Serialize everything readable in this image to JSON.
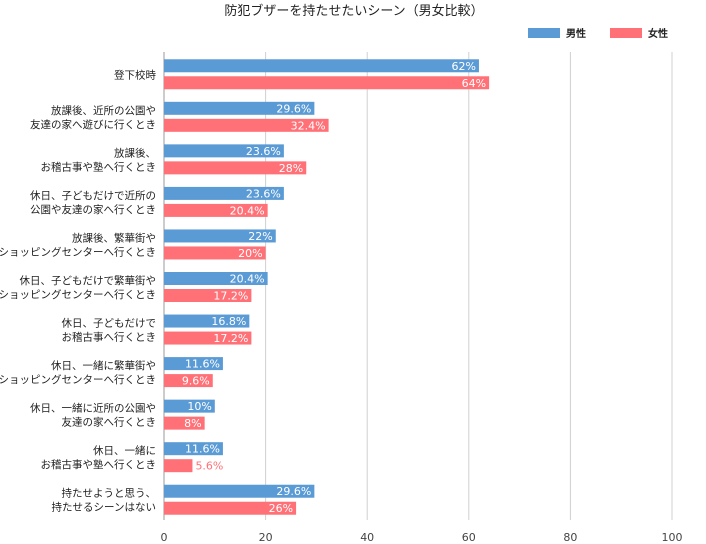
{
  "chart_data": {
    "type": "bar",
    "orientation": "horizontal",
    "title": "防犯ブザーを持たせたいシーン（男女比較）",
    "xlim": [
      0,
      100
    ],
    "xticks": [
      0,
      20,
      40,
      60,
      80,
      100
    ],
    "grid": true,
    "legend_position": "top-right",
    "categories": [
      [
        "登下校時"
      ],
      [
        "放課後、近所の公園や",
        "友達の家へ遊びに行くとき"
      ],
      [
        "放課後、",
        "お稽古事や塾へ行くとき"
      ],
      [
        "休日、子どもだけで近所の",
        "公園や友達の家へ行くとき"
      ],
      [
        "放課後、繁華街や",
        "ショッピングセンターへ行くとき"
      ],
      [
        "休日、子どもだけで繁華街や",
        "ショッピングセンターへ行くとき"
      ],
      [
        "休日、子どもだけで",
        "お稽古事へ行くとき"
      ],
      [
        "休日、一緒に繁華街や",
        "ショッピングセンターへ行くとき"
      ],
      [
        "休日、一緒に近所の公園や",
        "友達の家へ行くとき"
      ],
      [
        "休日、一緒に",
        "お稽古事や塾へ行くとき"
      ],
      [
        "持たせようと思う、",
        "持たせるシーンはない"
      ]
    ],
    "series": [
      {
        "name": "男性",
        "color": "#5b9bd5",
        "values": [
          62,
          29.6,
          23.6,
          23.6,
          22,
          20.4,
          16.8,
          11.6,
          10,
          11.6,
          29.6
        ],
        "labels": [
          "62%",
          "29.6%",
          "23.6%",
          "23.6%",
          "22%",
          "20.4%",
          "16.8%",
          "11.6%",
          "10%",
          "11.6%",
          "29.6%"
        ]
      },
      {
        "name": "女性",
        "color": "#ff7177",
        "values": [
          64,
          32.4,
          28,
          20.4,
          20,
          17.2,
          17.2,
          9.6,
          8,
          5.6,
          26
        ],
        "labels": [
          "64%",
          "32.4%",
          "28%",
          "20.4%",
          "20%",
          "17.2%",
          "17.2%",
          "9.6%",
          "8%",
          "5.6%",
          "26%"
        ]
      }
    ]
  }
}
